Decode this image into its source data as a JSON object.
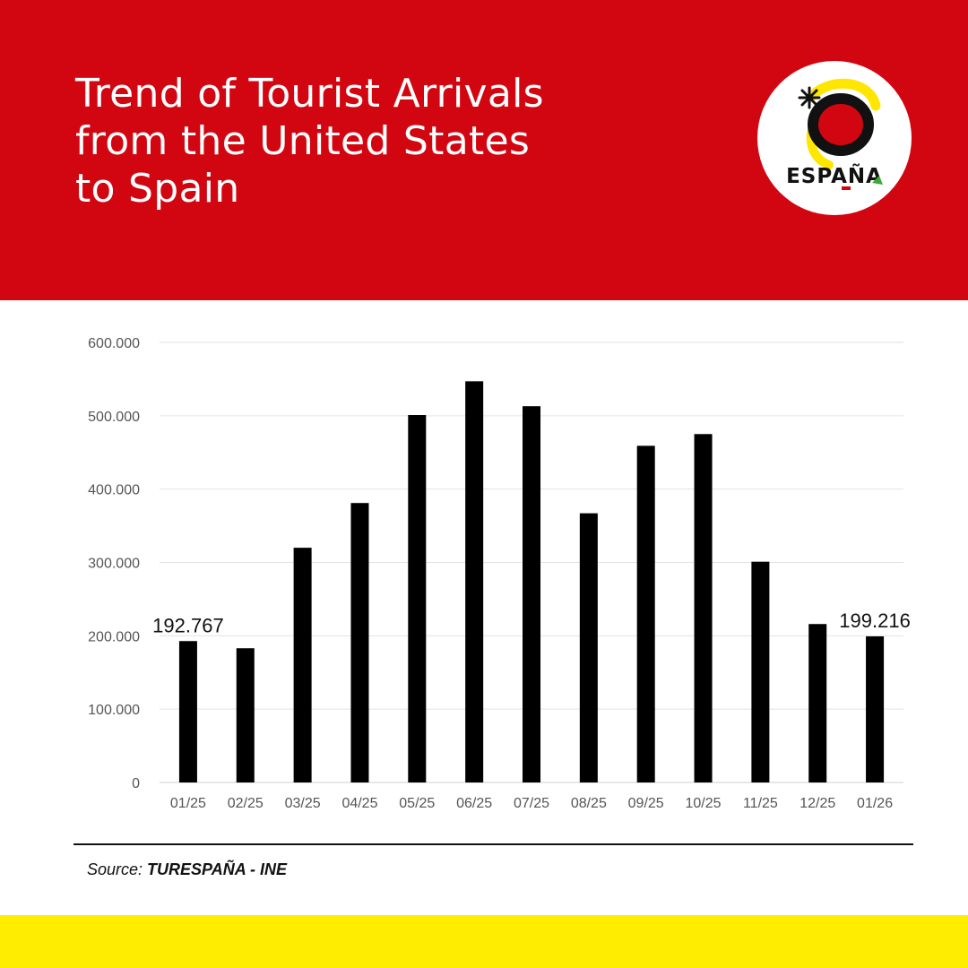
{
  "header": {
    "title_lines": [
      "Trend of Tourist Arrivals",
      "from the United States",
      "to Spain"
    ],
    "background_color": "#d20611",
    "logo": {
      "icon": "espana-sun-logo",
      "text": "ESPAÑA"
    }
  },
  "chart_data": {
    "type": "bar",
    "title": "Trend of Tourist Arrivals from the United States to Spain",
    "xlabel": "",
    "ylabel": "",
    "categories": [
      "01/25",
      "02/25",
      "03/25",
      "04/25",
      "05/25",
      "06/25",
      "07/25",
      "08/25",
      "09/25",
      "10/25",
      "11/25",
      "12/25",
      "01/26"
    ],
    "values": [
      192767,
      183000,
      320000,
      381000,
      501000,
      547000,
      513000,
      367000,
      459000,
      475000,
      301000,
      216000,
      199216
    ],
    "ylim": [
      0,
      600000
    ],
    "yticks": [
      0,
      100000,
      200000,
      300000,
      400000,
      500000,
      600000
    ],
    "ytick_labels": [
      "0",
      "100.000",
      "200.000",
      "300.000",
      "400.000",
      "500.000",
      "600.000"
    ],
    "data_labels": [
      {
        "index": 0,
        "text": "192.767"
      },
      {
        "index": 12,
        "text": "199.216"
      }
    ],
    "bar_color": "#000000",
    "grid": true,
    "legend": "none"
  },
  "source": {
    "prefix": "Source: ",
    "name": "TURESPAÑA - INE"
  },
  "footer": {
    "band_color": "#ffed00"
  }
}
